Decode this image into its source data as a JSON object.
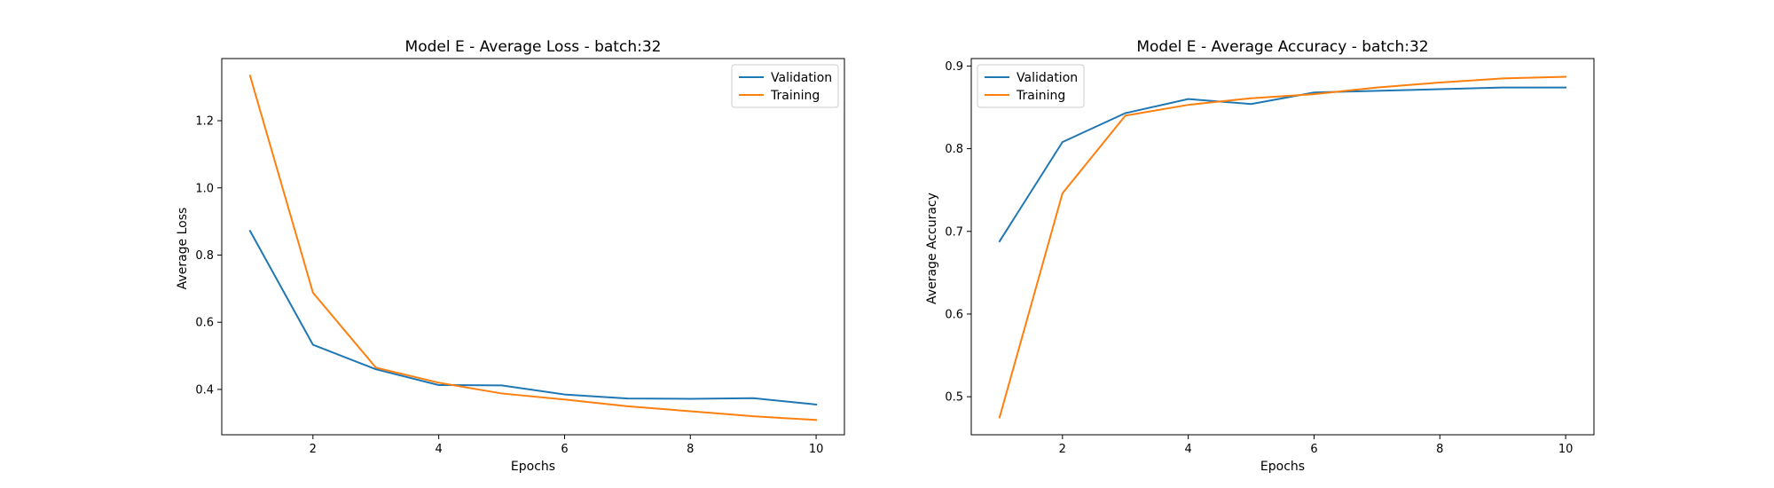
{
  "chart_data": [
    {
      "type": "line",
      "title": "Model E - Average Loss - batch:32",
      "xlabel": "Epochs",
      "ylabel": "Average Loss",
      "x": [
        1,
        2,
        3,
        4,
        5,
        6,
        7,
        8,
        9,
        10
      ],
      "xlim": [
        0.55,
        10.45
      ],
      "ylim": [
        0.265,
        1.385
      ],
      "xticks": [
        2,
        4,
        6,
        8,
        10
      ],
      "yticks": [
        0.4,
        0.6,
        0.8,
        1.0,
        1.2
      ],
      "grid": false,
      "legend": "top-right",
      "series": [
        {
          "name": "Validation",
          "color": "#1f77b4",
          "values": [
            0.872,
            0.533,
            0.46,
            0.413,
            0.412,
            0.385,
            0.373,
            0.372,
            0.374,
            0.355
          ]
        },
        {
          "name": "Training",
          "color": "#ff7f0e",
          "values": [
            1.334,
            0.688,
            0.465,
            0.42,
            0.388,
            0.37,
            0.35,
            0.335,
            0.32,
            0.309
          ]
        }
      ]
    },
    {
      "type": "line",
      "title": "Model E - Average Accuracy - batch:32",
      "xlabel": "Epochs",
      "ylabel": "Average Accuracy",
      "x": [
        1,
        2,
        3,
        4,
        5,
        6,
        7,
        8,
        9,
        10
      ],
      "xlim": [
        0.55,
        10.45
      ],
      "ylim": [
        0.454,
        0.909
      ],
      "xticks": [
        2,
        4,
        6,
        8,
        10
      ],
      "yticks": [
        0.5,
        0.6,
        0.7,
        0.8,
        0.9
      ],
      "grid": false,
      "legend": "top-left",
      "series": [
        {
          "name": "Validation",
          "color": "#1f77b4",
          "values": [
            0.688,
            0.808,
            0.843,
            0.86,
            0.854,
            0.868,
            0.87,
            0.872,
            0.874,
            0.874
          ]
        },
        {
          "name": "Training",
          "color": "#ff7f0e",
          "values": [
            0.475,
            0.746,
            0.84,
            0.853,
            0.861,
            0.866,
            0.874,
            0.88,
            0.885,
            0.887
          ]
        }
      ]
    }
  ]
}
